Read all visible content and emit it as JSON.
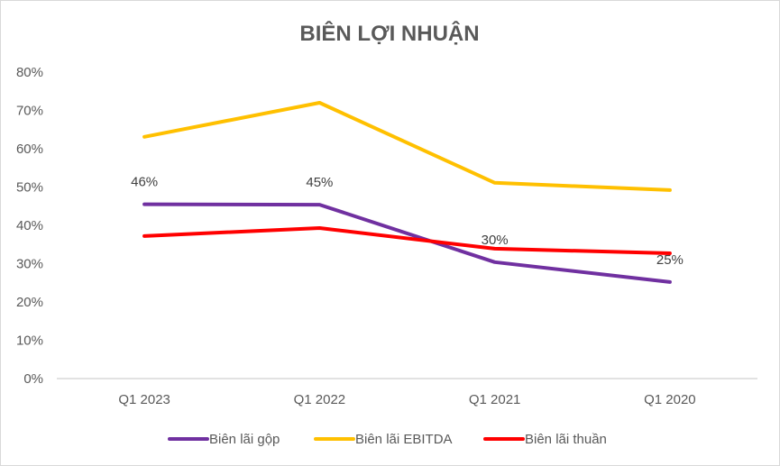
{
  "chart_data": {
    "type": "line",
    "title": "BIÊN LỢI NHUẬN",
    "xlabel": "",
    "ylabel": "",
    "categories": [
      "Q1 2023",
      "Q1 2022",
      "Q1 2021",
      "Q1 2020"
    ],
    "ylim": [
      0,
      80
    ],
    "yticks": [
      0,
      10,
      20,
      30,
      40,
      50,
      60,
      70,
      80
    ],
    "ytick_labels": [
      "0%",
      "10%",
      "20%",
      "30%",
      "40%",
      "50%",
      "60%",
      "70%",
      "80%"
    ],
    "grid": false,
    "legend_position": "bottom",
    "series": [
      {
        "name": "Biên lãi gộp",
        "color": "#7030a0",
        "values": [
          45.5,
          45.4,
          30.4,
          25.2
        ],
        "data_labels": [
          "46%",
          "45%",
          "30%",
          "25%"
        ]
      },
      {
        "name": "Biên lãi EBITDA",
        "color": "#ffc000",
        "values": [
          63.1,
          72.0,
          51.1,
          49.2
        ],
        "data_labels": null
      },
      {
        "name": "Biên lãi thuần",
        "color": "#ff0000",
        "values": [
          37.2,
          39.3,
          33.9,
          32.7
        ],
        "data_labels": null
      }
    ]
  }
}
